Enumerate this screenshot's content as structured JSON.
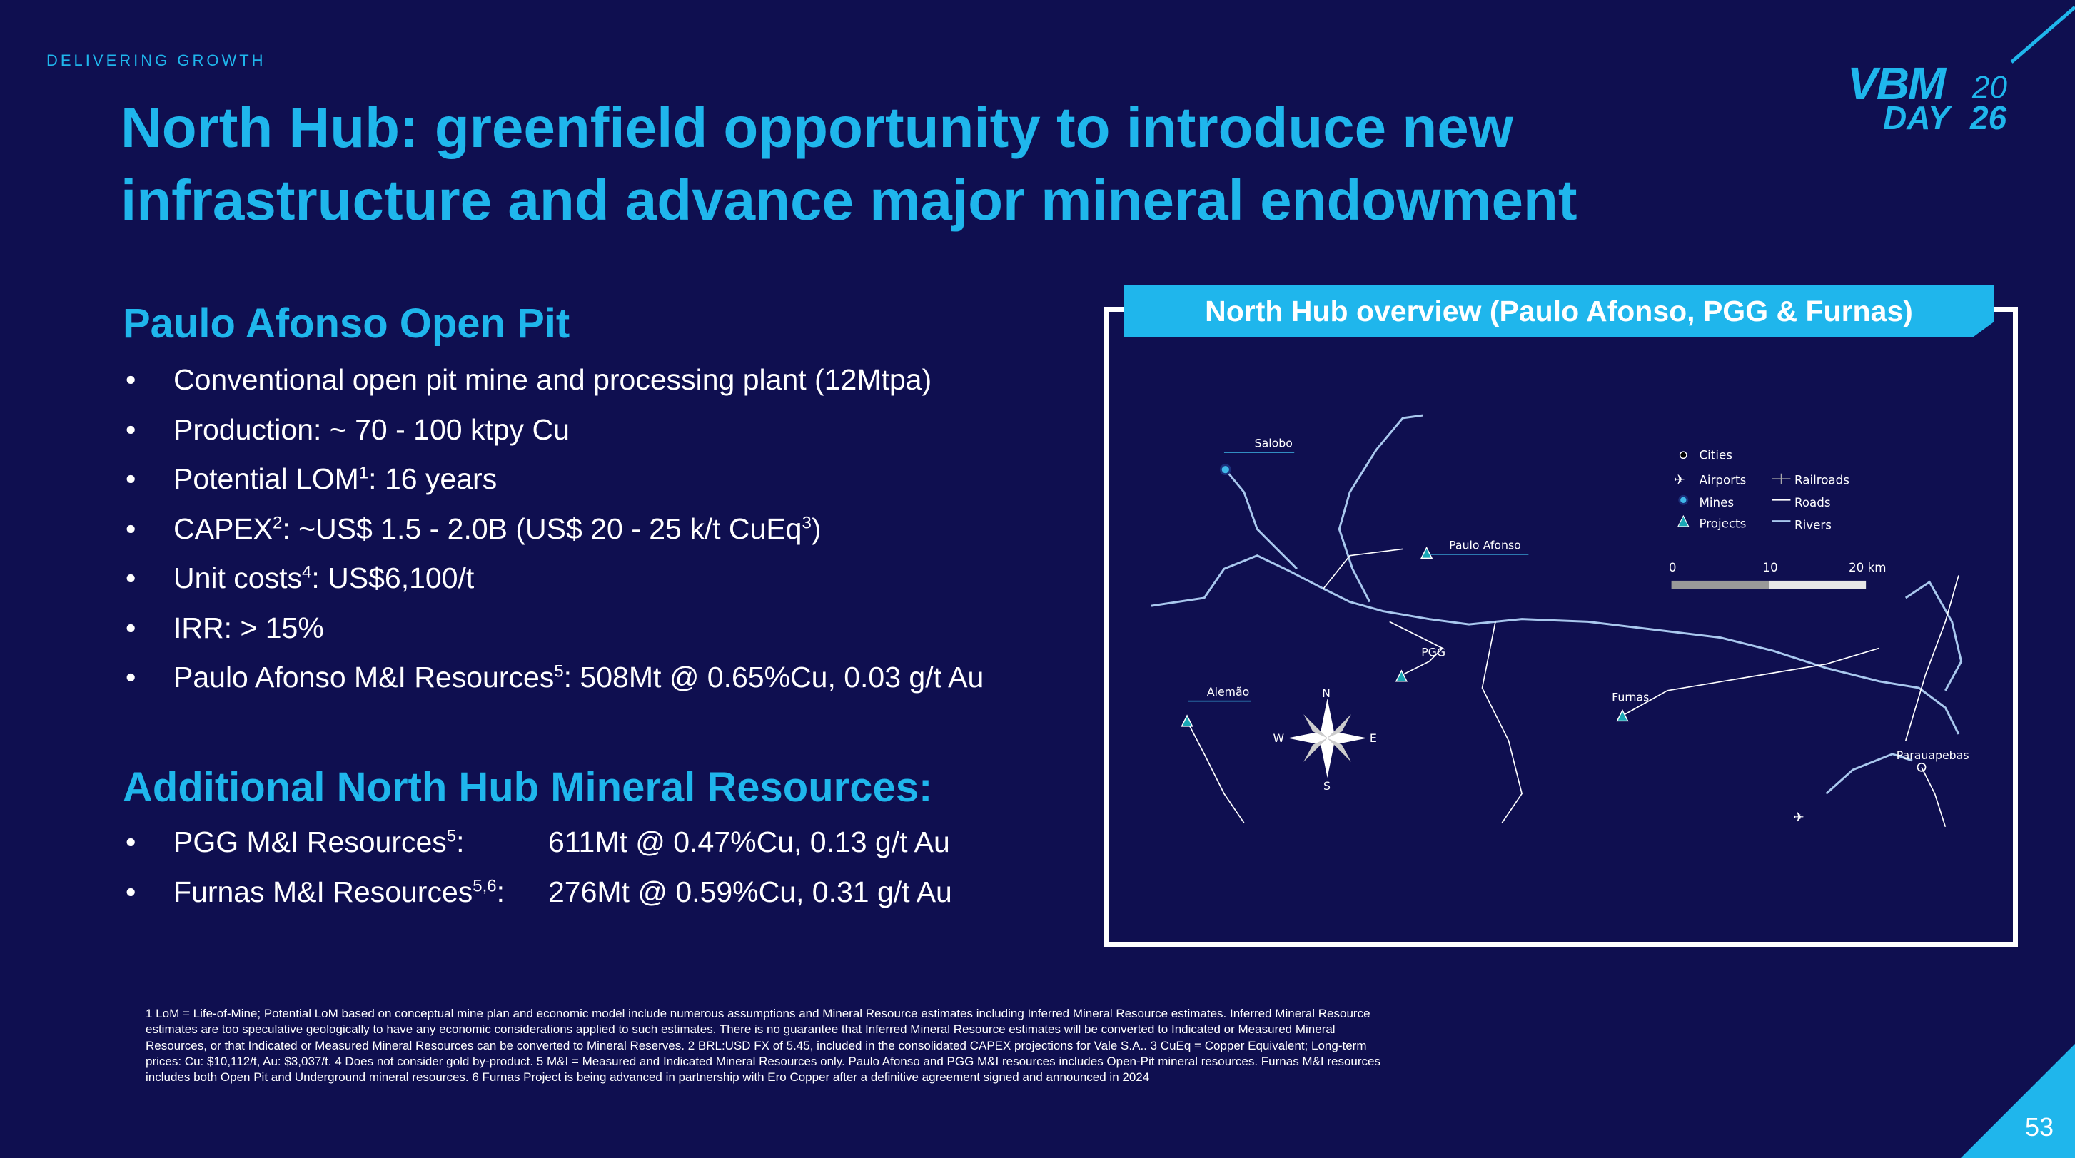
{
  "header": {
    "kicker": "DELIVERING GROWTH",
    "title_line1": "North Hub: greenfield opportunity to introduce new",
    "title_line2": "infrastructure and advance major mineral endowment"
  },
  "logo": {
    "text1": "VBM",
    "year1": "20",
    "text2": "DAY",
    "year2": "26"
  },
  "section1": {
    "heading": "Paulo Afonso Open Pit",
    "bullets": [
      {
        "text": "Conventional open pit mine and processing plant (12Mtpa)"
      },
      {
        "text": "Production: ~ 70 - 100 ktpy Cu"
      },
      {
        "pre": "Potential LOM",
        "sup": "1",
        "post": ": 16 years"
      },
      {
        "pre": "CAPEX",
        "sup": "2",
        "post": ": ~US$ 1.5 - 2.0B (US$ 20 - 25 k/t CuEq",
        "sup2": "3",
        "post2": ")"
      },
      {
        "pre": "Unit costs",
        "sup": "4",
        "post": ": US$6,100/t"
      },
      {
        "text": "IRR: > 15%"
      },
      {
        "pre": "Paulo Afonso M&I Resources",
        "sup": "5",
        "post": ": 508Mt @ 0.65%Cu, 0.03 g/t Au"
      }
    ]
  },
  "section2": {
    "heading": "Additional North Hub Mineral Resources:",
    "bullets": [
      {
        "pre": "PGG M&I Resources",
        "sup": "5",
        "post": ":",
        "value": "611Mt @ 0.47%Cu, 0.13 g/t Au"
      },
      {
        "pre": "Furnas M&I Resources",
        "sup": "5,6",
        "post": ":",
        "value": "276Mt @ 0.59%Cu, 0.31 g/t Au"
      }
    ]
  },
  "map": {
    "title": "North Hub overview (Paulo Afonso, PGG & Furnas)",
    "places": {
      "salobo": "Salobo",
      "paulo_afonso": "Paulo Afonso",
      "pgg": "PGG",
      "alemao": "Alemão",
      "furnas": "Furnas",
      "parauapebas": "Parauapebas"
    },
    "compass": {
      "n": "N",
      "s": "S",
      "e": "E",
      "w": "W"
    },
    "legend": {
      "cities": "Cities",
      "airports": "Airports",
      "mines": "Mines",
      "projects": "Projects",
      "railroads": "Railroads",
      "roads": "Roads",
      "rivers": "Rivers"
    },
    "scale": {
      "t0": "0",
      "t1": "10",
      "t2": "20 km"
    },
    "colors": {
      "river": "#a9c8ee",
      "mine": "#3fb7e8",
      "project": "#1aa7b5"
    }
  },
  "footnotes": [
    "1 LoM = Life-of-Mine; Potential LoM based on conceptual mine plan and economic model include numerous assumptions and Mineral Resource estimates including Inferred Mineral Resource estimates. Inferred Mineral Resource",
    "estimates are too speculative geologically to have any economic considerations applied to such estimates. There is no guarantee that Inferred Mineral Resource estimates will be converted to Indicated or Measured Mineral",
    "Resources, or that Indicated or Measured Mineral Resources can be converted to Mineral Reserves. 2 BRL:USD FX of 5.45, included in the consolidated CAPEX projections for Vale S.A.. 3 CuEq = Copper Equivalent; Long-term",
    "prices: Cu: $10,112/t, Au: $3,037/t. 4 Does not consider gold by-product. 5 M&I = Measured and Indicated Mineral Resources only. Paulo Afonso and PGG M&I resources includes Open-Pit mineral resources. Furnas M&I resources",
    "includes both Open Pit and Underground mineral resources. 6 Furnas Project is being advanced in partnership with Ero Copper after a definitive agreement signed and announced in 2024"
  ],
  "page_number": "53",
  "colors": {
    "background": "#0f0f50",
    "accent": "#1fb6ec"
  }
}
